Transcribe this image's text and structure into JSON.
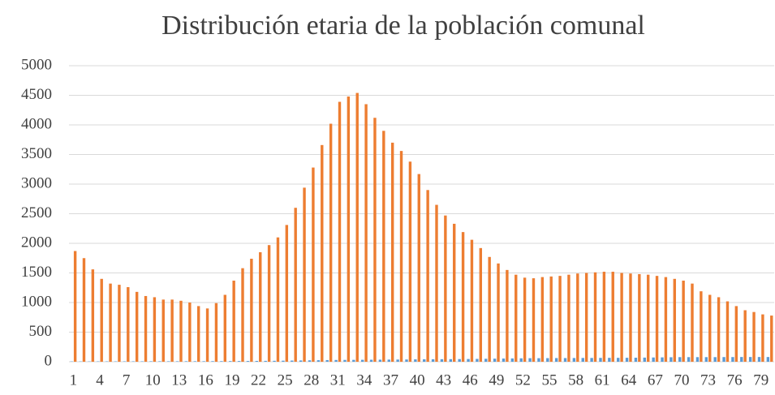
{
  "chart_data": {
    "type": "bar",
    "title": "Distribución etaria de la población comunal",
    "categories": [
      1,
      null,
      null,
      4,
      null,
      null,
      7,
      null,
      null,
      10,
      null,
      null,
      13,
      null,
      null,
      16,
      null,
      null,
      19,
      null,
      null,
      22,
      null,
      null,
      25,
      null,
      null,
      28,
      null,
      null,
      31,
      null,
      null,
      34,
      null,
      null,
      37,
      null,
      null,
      40,
      null,
      null,
      43,
      null,
      null,
      46,
      null,
      null,
      49,
      null,
      null,
      52,
      null,
      null,
      55,
      null,
      null,
      58,
      null,
      null,
      61,
      null,
      null,
      64,
      null,
      null,
      67,
      null,
      null,
      70,
      null,
      null,
      73,
      null,
      null,
      76,
      null,
      null,
      79,
      null
    ],
    "series": [
      {
        "color": "#5b9bd5",
        "values": [
          5,
          5,
          5,
          6,
          6,
          6,
          7,
          7,
          7,
          8,
          8,
          8,
          8,
          9,
          9,
          9,
          10,
          10,
          11,
          12,
          13,
          14,
          15,
          16,
          18,
          20,
          22,
          24,
          26,
          28,
          30,
          31,
          32,
          33,
          34,
          35,
          36,
          37,
          38,
          40,
          41,
          42,
          43,
          44,
          45,
          46,
          48,
          50,
          52,
          54,
          56,
          58,
          60,
          60,
          61,
          62,
          62,
          63,
          64,
          64,
          65,
          66,
          66,
          67,
          68,
          70,
          72,
          74,
          76,
          78,
          78,
          78,
          78,
          78,
          79,
          79,
          80,
          80,
          80,
          80
        ]
      },
      {
        "color": "#ed7d31",
        "values": [
          1870,
          1750,
          1560,
          1400,
          1320,
          1300,
          1260,
          1180,
          1110,
          1090,
          1050,
          1050,
          1030,
          1000,
          940,
          900,
          990,
          1130,
          1370,
          1580,
          1740,
          1850,
          1970,
          2100,
          2310,
          2600,
          2940,
          3280,
          3660,
          4020,
          4390,
          4480,
          4540,
          4350,
          4120,
          3900,
          3700,
          3560,
          3380,
          3170,
          2900,
          2650,
          2470,
          2330,
          2190,
          2060,
          1920,
          1770,
          1660,
          1550,
          1470,
          1420,
          1410,
          1430,
          1440,
          1450,
          1470,
          1490,
          1500,
          1510,
          1520,
          1520,
          1500,
          1490,
          1480,
          1470,
          1450,
          1430,
          1400,
          1370,
          1320,
          1190,
          1130,
          1090,
          1020,
          940,
          870,
          840,
          800,
          780
        ]
      }
    ],
    "ylim": [
      0,
      5000
    ],
    "yticks": [
      0,
      500,
      1000,
      1500,
      2000,
      2500,
      3000,
      3500,
      4000,
      4500,
      5000
    ],
    "grid": true
  }
}
